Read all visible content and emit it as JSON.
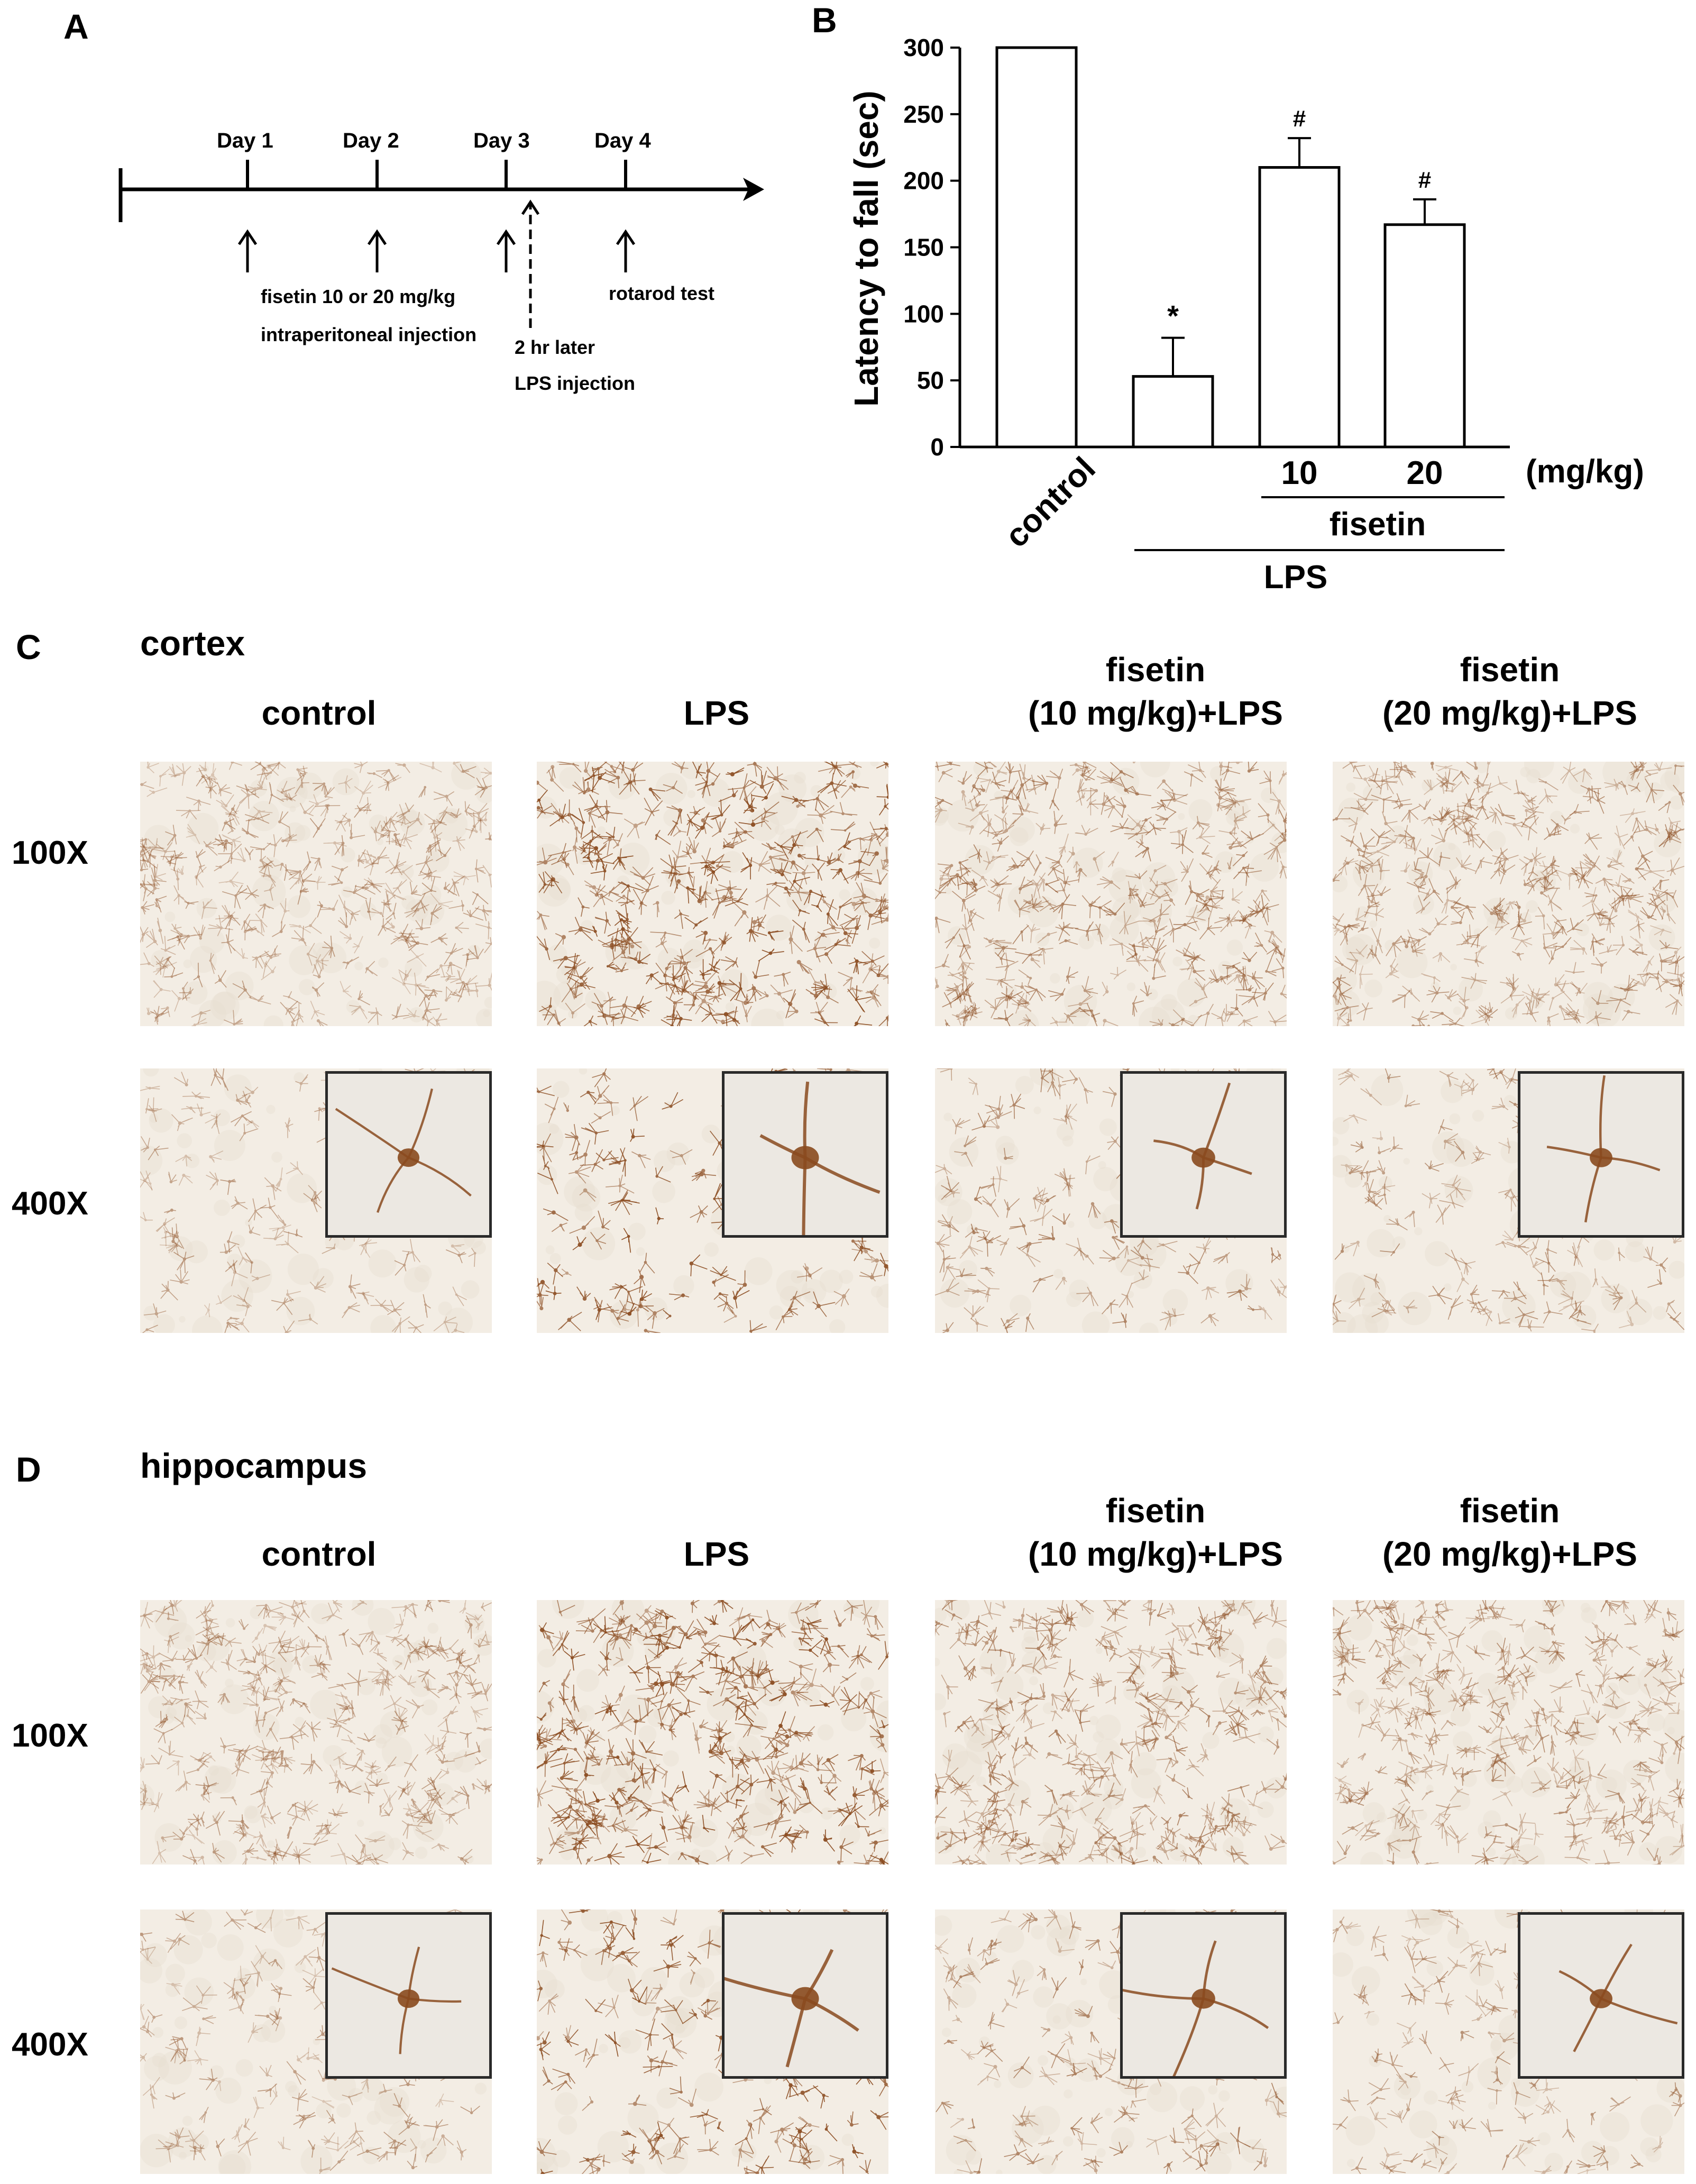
{
  "panel_A": {
    "letter": "A",
    "days": [
      "Day 1",
      "Day 2",
      "Day 3",
      "Day 4"
    ],
    "note_fisetin_1": "fisetin 10 or 20 mg/kg",
    "note_fisetin_2": "intraperitoneal injection",
    "note_lps_1": "2 hr later",
    "note_lps_2": "LPS injection",
    "note_rotarod": "rotarod test"
  },
  "panel_B": {
    "letter": "B",
    "unit_label": "(mg/kg)",
    "group_fisetin": "fisetin",
    "group_lps": "LPS"
  },
  "chart_data": {
    "type": "bar",
    "categories": [
      "control",
      "",
      "10",
      "20"
    ],
    "values": [
      300,
      53,
      210,
      167
    ],
    "errors": [
      0,
      29,
      22,
      19
    ],
    "annotations": [
      "",
      "*",
      "#",
      "#"
    ],
    "ylabel": "Latency to fall (sec)",
    "ylim": [
      0,
      300
    ],
    "yticks": [
      0,
      50,
      100,
      150,
      200,
      250,
      300
    ],
    "bar_color": "#ffffff",
    "edge_color": "#000000"
  },
  "panel_C": {
    "letter": "C",
    "region": "cortex",
    "columns": [
      {
        "line1": "",
        "line2": "control"
      },
      {
        "line1": "",
        "line2": "LPS"
      },
      {
        "line1": "fisetin",
        "line2": "(10 mg/kg)+LPS"
      },
      {
        "line1": "fisetin",
        "line2": "(20 mg/kg)+LPS"
      }
    ],
    "row_labels": [
      "100X",
      "400X"
    ]
  },
  "panel_D": {
    "letter": "D",
    "region": "hippocampus",
    "columns": [
      {
        "line1": "",
        "line2": "control"
      },
      {
        "line1": "",
        "line2": "LPS"
      },
      {
        "line1": "fisetin",
        "line2": "(10 mg/kg)+LPS"
      },
      {
        "line1": "fisetin",
        "line2": "(20 mg/kg)+LPS"
      }
    ],
    "row_labels": [
      "100X",
      "400X"
    ]
  },
  "colors": {
    "tissue_background": "#f3ede4",
    "stain": "#8a4a1e",
    "inset_border": "#2a2a2a"
  }
}
